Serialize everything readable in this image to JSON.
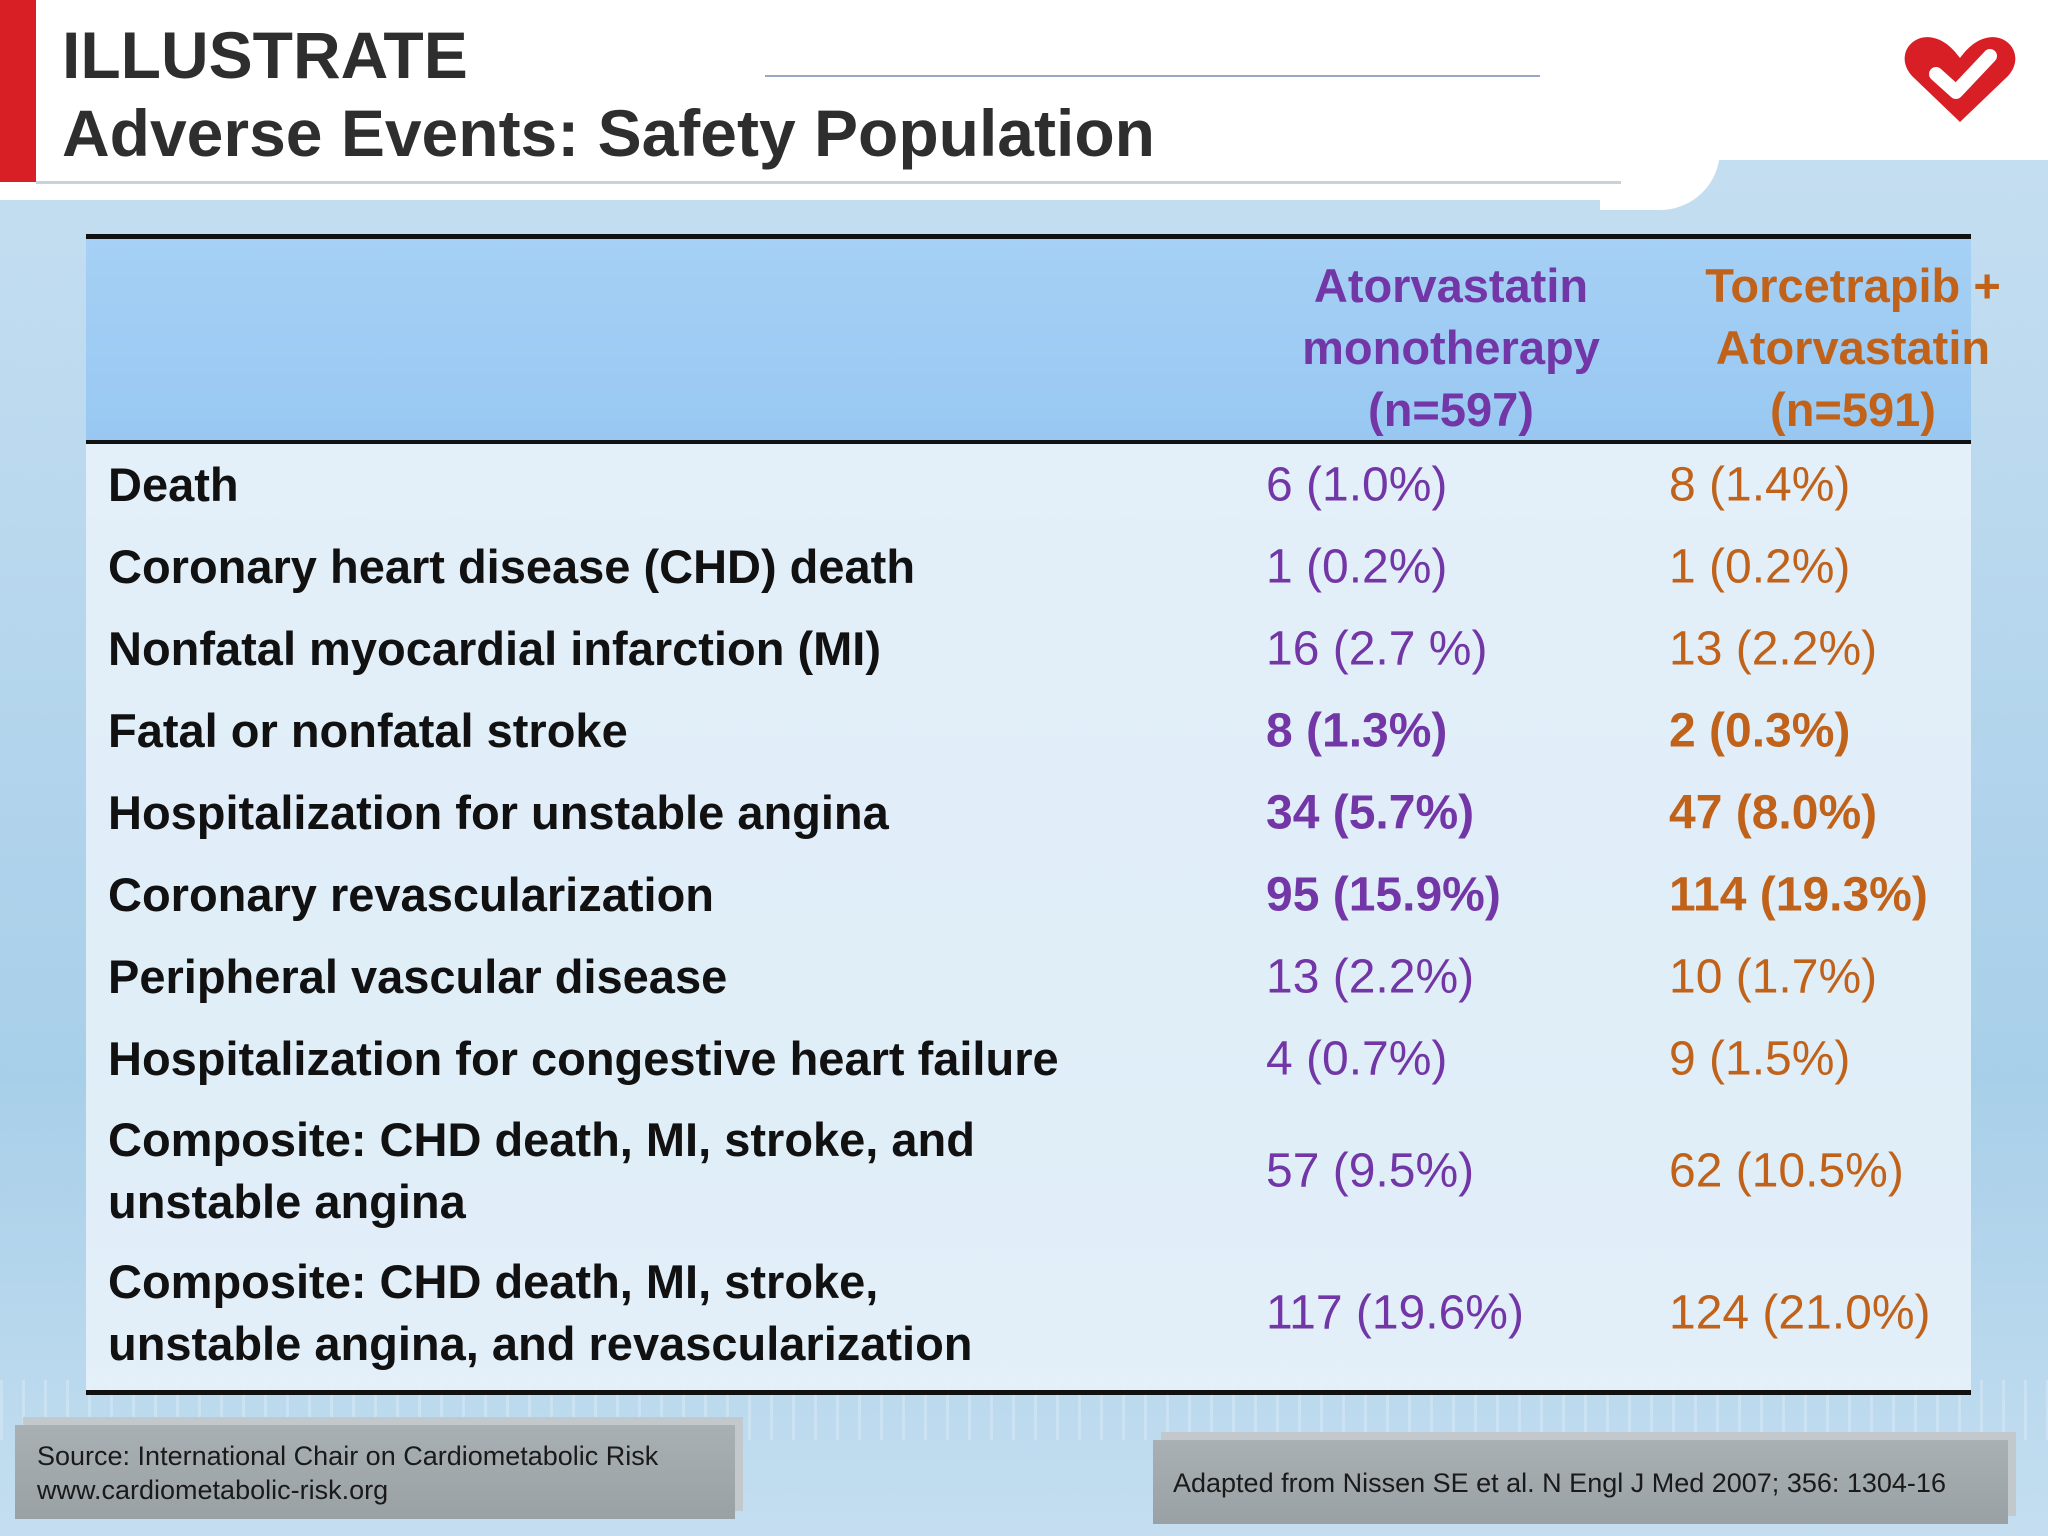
{
  "header": {
    "title_line1": "ILLUSTRATE",
    "title_line2": "Adverse Events: Safety Population"
  },
  "colors": {
    "accent_red": "#d81f26",
    "atorvastatin": "#7236a6",
    "torcetrapib": "#c0621a",
    "table_header_bg": "#a6d0f5"
  },
  "logo": {
    "icon": "heart-check-icon"
  },
  "table": {
    "columns": [
      {
        "lines": [
          "Atorvastatin",
          "monotherapy",
          "(n=597)"
        ]
      },
      {
        "lines": [
          "Torcetrapib +",
          "Atorvastatin",
          "(n=591)"
        ]
      }
    ],
    "rows": [
      {
        "label": [
          "Death"
        ],
        "a": "6 (1.0%)",
        "b": "8 (1.4%)",
        "bold": false
      },
      {
        "label": [
          "Coronary heart disease (CHD) death"
        ],
        "a": "1 (0.2%)",
        "b": "1 (0.2%)",
        "bold": false
      },
      {
        "label": [
          "Nonfatal myocardial infarction (MI)"
        ],
        "a": "16 (2.7 %)",
        "b": "13 (2.2%)",
        "bold": false
      },
      {
        "label": [
          "Fatal or nonfatal stroke"
        ],
        "a": "8 (1.3%)",
        "b": "2 (0.3%)",
        "bold": true
      },
      {
        "label": [
          "Hospitalization for unstable angina"
        ],
        "a": "34 (5.7%)",
        "b": "47 (8.0%)",
        "bold": true
      },
      {
        "label": [
          "Coronary revascularization"
        ],
        "a": "95 (15.9%)",
        "b": "114 (19.3%)",
        "bold": true
      },
      {
        "label": [
          "Peripheral vascular disease"
        ],
        "a": "13 (2.2%)",
        "b": "10 (1.7%)",
        "bold": false
      },
      {
        "label": [
          "Hospitalization for congestive heart failure"
        ],
        "a": "4 (0.7%)",
        "b": "9 (1.5%)",
        "bold": false
      },
      {
        "label": [
          "Composite: CHD death, MI, stroke, and",
          "unstable angina"
        ],
        "a": "57 (9.5%)",
        "b": "62 (10.5%)",
        "bold": false
      },
      {
        "label": [
          "Composite: CHD death, MI, stroke,",
          "unstable angina, and revascularization"
        ],
        "a": "117 (19.6%)",
        "b": "124 (21.0%)",
        "bold": false
      }
    ]
  },
  "footer": {
    "source_line1": "Source: International Chair on Cardiometabolic Risk",
    "source_line2": "www.cardiometabolic-risk.org",
    "citation": "Adapted from Nissen SE et al. N Engl J Med 2007; 356: 1304-16"
  }
}
